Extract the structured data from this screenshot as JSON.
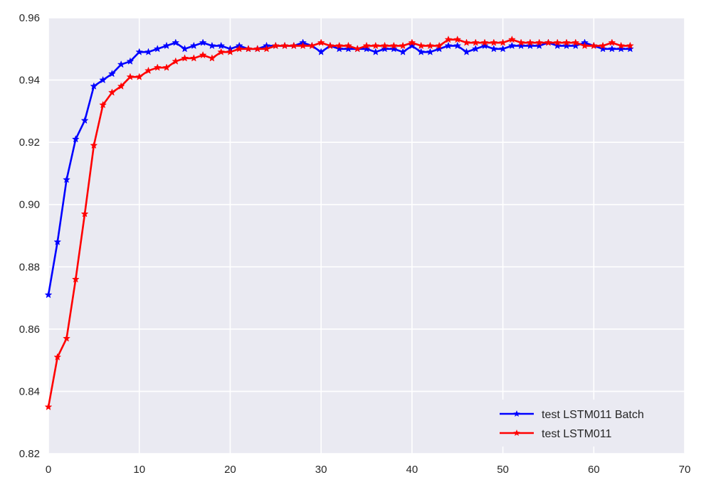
{
  "chart_data": {
    "type": "line",
    "title": "",
    "xlabel": "",
    "ylabel": "",
    "xlim": [
      0,
      70
    ],
    "ylim": [
      0.82,
      0.96
    ],
    "xticks": [
      0,
      10,
      20,
      30,
      40,
      50,
      60,
      70
    ],
    "yticks": [
      0.82,
      0.84,
      0.86,
      0.88,
      0.9,
      0.92,
      0.94,
      0.96
    ],
    "xtick_labels": [
      "0",
      "10",
      "20",
      "30",
      "40",
      "50",
      "60",
      "70"
    ],
    "ytick_labels": [
      "0.82",
      "0.84",
      "0.86",
      "0.88",
      "0.90",
      "0.92",
      "0.94",
      "0.96"
    ],
    "grid": true,
    "background": "#eaeaf2",
    "legend_position": "lower-right",
    "marker": "star",
    "series": [
      {
        "name": "test LSTM011 Batch",
        "color": "#0000ff",
        "x": [
          0,
          1,
          2,
          3,
          4,
          5,
          6,
          7,
          8,
          9,
          10,
          11,
          12,
          13,
          14,
          15,
          16,
          17,
          18,
          19,
          20,
          21,
          22,
          23,
          24,
          25,
          26,
          27,
          28,
          29,
          30,
          31,
          32,
          33,
          34,
          35,
          36,
          37,
          38,
          39,
          40,
          41,
          42,
          43,
          44,
          45,
          46,
          47,
          48,
          49,
          50,
          51,
          52,
          53,
          54,
          55,
          56,
          57,
          58,
          59,
          60,
          61,
          62,
          63,
          64
        ],
        "values": [
          0.871,
          0.888,
          0.908,
          0.921,
          0.927,
          0.938,
          0.94,
          0.942,
          0.945,
          0.946,
          0.949,
          0.949,
          0.95,
          0.951,
          0.952,
          0.95,
          0.951,
          0.952,
          0.951,
          0.951,
          0.95,
          0.951,
          0.95,
          0.95,
          0.951,
          0.951,
          0.951,
          0.951,
          0.952,
          0.951,
          0.949,
          0.951,
          0.95,
          0.95,
          0.95,
          0.95,
          0.949,
          0.95,
          0.95,
          0.949,
          0.951,
          0.949,
          0.949,
          0.95,
          0.951,
          0.951,
          0.949,
          0.95,
          0.951,
          0.95,
          0.95,
          0.951,
          0.951,
          0.951,
          0.951,
          0.952,
          0.951,
          0.951,
          0.951,
          0.952,
          0.951,
          0.95,
          0.95,
          0.95,
          0.95
        ]
      },
      {
        "name": "test LSTM011",
        "color": "#ff0000",
        "x": [
          0,
          1,
          2,
          3,
          4,
          5,
          6,
          7,
          8,
          9,
          10,
          11,
          12,
          13,
          14,
          15,
          16,
          17,
          18,
          19,
          20,
          21,
          22,
          23,
          24,
          25,
          26,
          27,
          28,
          29,
          30,
          31,
          32,
          33,
          34,
          35,
          36,
          37,
          38,
          39,
          40,
          41,
          42,
          43,
          44,
          45,
          46,
          47,
          48,
          49,
          50,
          51,
          52,
          53,
          54,
          55,
          56,
          57,
          58,
          59,
          60,
          61,
          62,
          63,
          64
        ],
        "values": [
          0.835,
          0.851,
          0.857,
          0.876,
          0.897,
          0.919,
          0.932,
          0.936,
          0.938,
          0.941,
          0.941,
          0.943,
          0.944,
          0.944,
          0.946,
          0.947,
          0.947,
          0.948,
          0.947,
          0.949,
          0.949,
          0.95,
          0.95,
          0.95,
          0.95,
          0.951,
          0.951,
          0.951,
          0.951,
          0.951,
          0.952,
          0.951,
          0.951,
          0.951,
          0.95,
          0.951,
          0.951,
          0.951,
          0.951,
          0.951,
          0.952,
          0.951,
          0.951,
          0.951,
          0.953,
          0.953,
          0.952,
          0.952,
          0.952,
          0.952,
          0.952,
          0.953,
          0.952,
          0.952,
          0.952,
          0.952,
          0.952,
          0.952,
          0.952,
          0.951,
          0.951,
          0.951,
          0.952,
          0.951,
          0.951
        ]
      }
    ]
  }
}
